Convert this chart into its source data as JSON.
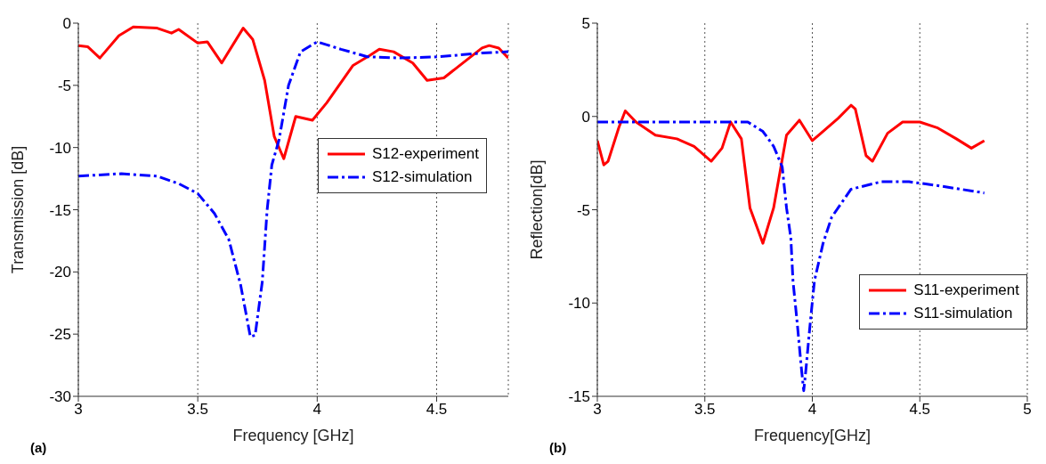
{
  "chart_data": [
    {
      "type": "line",
      "xlabel": "Frequency [GHz]",
      "ylabel": "Transmission [dB]",
      "xlim": [
        3,
        4.8
      ],
      "xticks": [
        3,
        3.5,
        4,
        4.5
      ],
      "ylim": [
        -30,
        0
      ],
      "yticks": [
        -30,
        -25,
        -20,
        -15,
        -10,
        -5,
        0
      ],
      "grid": "x",
      "legend": "right",
      "annotations": [
        "(a)"
      ],
      "series": [
        {
          "name": "S12-experiment",
          "color": "#ff0000",
          "line_style": "solid",
          "x": [
            3.0,
            3.04,
            3.09,
            3.17,
            3.23,
            3.33,
            3.39,
            3.42,
            3.5,
            3.54,
            3.6,
            3.69,
            3.73,
            3.78,
            3.82,
            3.86,
            3.91,
            3.98,
            4.04,
            4.15,
            4.22,
            4.26,
            4.32,
            4.4,
            4.46,
            4.53,
            4.59,
            4.69,
            4.72,
            4.76,
            4.8
          ],
          "values": [
            -1.8,
            -1.9,
            -2.8,
            -1.0,
            -0.3,
            -0.4,
            -0.8,
            -0.5,
            -1.6,
            -1.5,
            -3.2,
            -0.4,
            -1.3,
            -4.6,
            -9.1,
            -10.9,
            -7.5,
            -7.8,
            -6.4,
            -3.4,
            -2.6,
            -2.1,
            -2.3,
            -3.2,
            -4.6,
            -4.4,
            -3.5,
            -2.0,
            -1.8,
            -2.0,
            -2.8
          ]
        },
        {
          "name": "S12-simulation",
          "color": "#0000ff",
          "line_style": "dashed",
          "x": [
            3.0,
            3.18,
            3.33,
            3.42,
            3.5,
            3.57,
            3.63,
            3.68,
            3.72,
            3.74,
            3.77,
            3.79,
            3.81,
            3.84,
            3.88,
            3.93,
            4.0,
            4.1,
            4.21,
            4.35,
            4.51,
            4.69,
            4.8
          ],
          "values": [
            -12.3,
            -12.1,
            -12.3,
            -12.9,
            -13.7,
            -15.3,
            -17.4,
            -21.1,
            -25.2,
            -25.1,
            -20.8,
            -15.1,
            -11.4,
            -9.4,
            -5.0,
            -2.3,
            -1.5,
            -2.1,
            -2.7,
            -2.8,
            -2.7,
            -2.4,
            -2.3
          ]
        }
      ]
    },
    {
      "type": "line",
      "xlabel": "Frequency[GHz]",
      "ylabel": "Reflection[dB]",
      "xlim": [
        3,
        5
      ],
      "xticks": [
        3,
        3.5,
        4,
        4.5,
        5
      ],
      "ylim": [
        -15,
        5
      ],
      "yticks": [
        -15,
        -10,
        -5,
        0,
        5
      ],
      "grid": "x",
      "legend": "bottom right",
      "annotations": [
        "(b)"
      ],
      "series": [
        {
          "name": "S11-experiment",
          "color": "#ff0000",
          "line_style": "solid",
          "x": [
            3.0,
            3.03,
            3.05,
            3.1,
            3.13,
            3.18,
            3.27,
            3.37,
            3.45,
            3.53,
            3.58,
            3.62,
            3.67,
            3.71,
            3.77,
            3.82,
            3.86,
            3.88,
            3.94,
            4.0,
            4.04,
            4.12,
            4.18,
            4.2,
            4.25,
            4.28,
            4.35,
            4.42,
            4.5,
            4.58,
            4.67,
            4.74,
            4.8
          ],
          "values": [
            -1.3,
            -2.6,
            -2.4,
            -0.6,
            0.3,
            -0.3,
            -1.0,
            -1.2,
            -1.6,
            -2.4,
            -1.7,
            -0.3,
            -1.2,
            -4.9,
            -6.8,
            -4.9,
            -2.3,
            -1.0,
            -0.2,
            -1.3,
            -0.9,
            -0.1,
            0.6,
            0.4,
            -2.1,
            -2.4,
            -0.9,
            -0.3,
            -0.3,
            -0.6,
            -1.2,
            -1.7,
            -1.3
          ]
        },
        {
          "name": "S11-simulation",
          "color": "#0000ff",
          "line_style": "dashed",
          "x": [
            3.0,
            3.62,
            3.7,
            3.77,
            3.82,
            3.86,
            3.88,
            3.9,
            3.91,
            3.93,
            3.95,
            3.96,
            3.97,
            3.99,
            4.01,
            4.05,
            4.09,
            4.18,
            4.32,
            4.45,
            4.58,
            4.8
          ],
          "values": [
            -0.3,
            -0.3,
            -0.3,
            -0.8,
            -1.6,
            -2.7,
            -4.9,
            -6.5,
            -8.8,
            -11.1,
            -13.6,
            -14.7,
            -13.6,
            -11.1,
            -8.8,
            -6.8,
            -5.4,
            -3.9,
            -3.5,
            -3.5,
            -3.7,
            -4.1
          ]
        }
      ]
    }
  ]
}
